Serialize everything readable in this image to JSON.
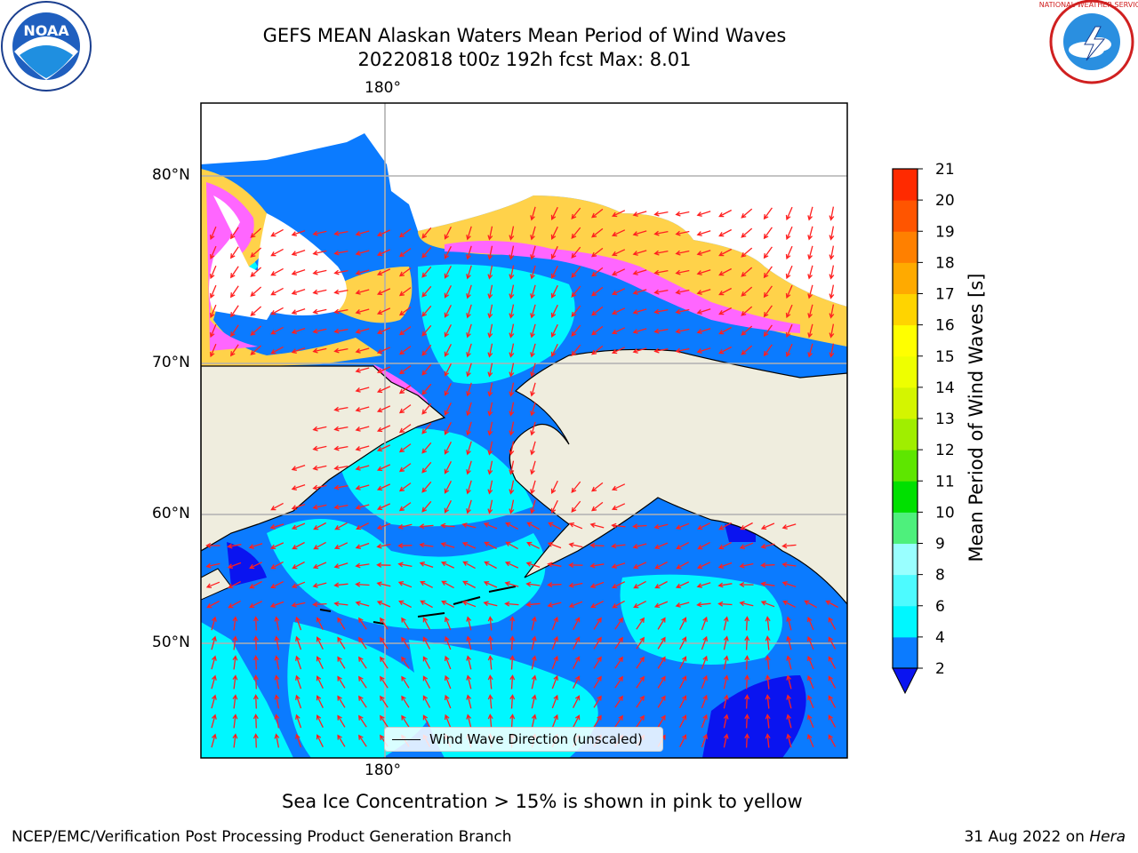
{
  "header": {
    "title_line1": "GEFS MEAN Alaskan Waters Mean Period of Wind Waves",
    "title_line2": "20220818 t00z 192h fcst   Max: 8.01"
  },
  "logos": {
    "left": {
      "name": "noaa-logo",
      "text": "NOAA"
    },
    "right": {
      "name": "national-weather-service-logo",
      "text": "NATIONAL WEATHER SERVICE"
    }
  },
  "map": {
    "lon_label_top": "180°",
    "lon_label_bottom": "180°",
    "lat_labels": [
      "80°N",
      "70°N",
      "60°N",
      "50°N"
    ],
    "legend_label": "Wind Wave Direction (unscaled)",
    "colors": {
      "land": "#efedde",
      "ocean_dark": "#0b7bff",
      "ocean_light": "#00f7ff",
      "ocean_deep": "#0a14f0",
      "ice_yellow": "#ffd24a",
      "ice_pink": "#ff66ff",
      "arrow": "#ff2020",
      "grid": "#b0b0b0"
    }
  },
  "colorbar": {
    "label": "Mean Period of Wind Waves [s]",
    "ticks": [
      "2",
      "4",
      "6",
      "8",
      "9",
      "10",
      "11",
      "12",
      "13",
      "14",
      "15",
      "16",
      "17",
      "18",
      "19",
      "20",
      "21"
    ],
    "colors": [
      "#0b7bff",
      "#00f7ff",
      "#4dfbff",
      "#99ffff",
      "#4ef07c",
      "#00e000",
      "#5ee600",
      "#a0ee00",
      "#d4f500",
      "#eeff00",
      "#ffff00",
      "#ffd400",
      "#ffaa00",
      "#ff8000",
      "#ff5500",
      "#ff2a00"
    ],
    "under_color": "#0a14f0"
  },
  "caption": "Sea Ice Concentration > 15% is shown in pink to yellow",
  "footer": {
    "left": "NCEP/EMC/Verification Post Processing Product Generation Branch",
    "right_date": "31 Aug 2022 on ",
    "right_machine": "Hera"
  }
}
